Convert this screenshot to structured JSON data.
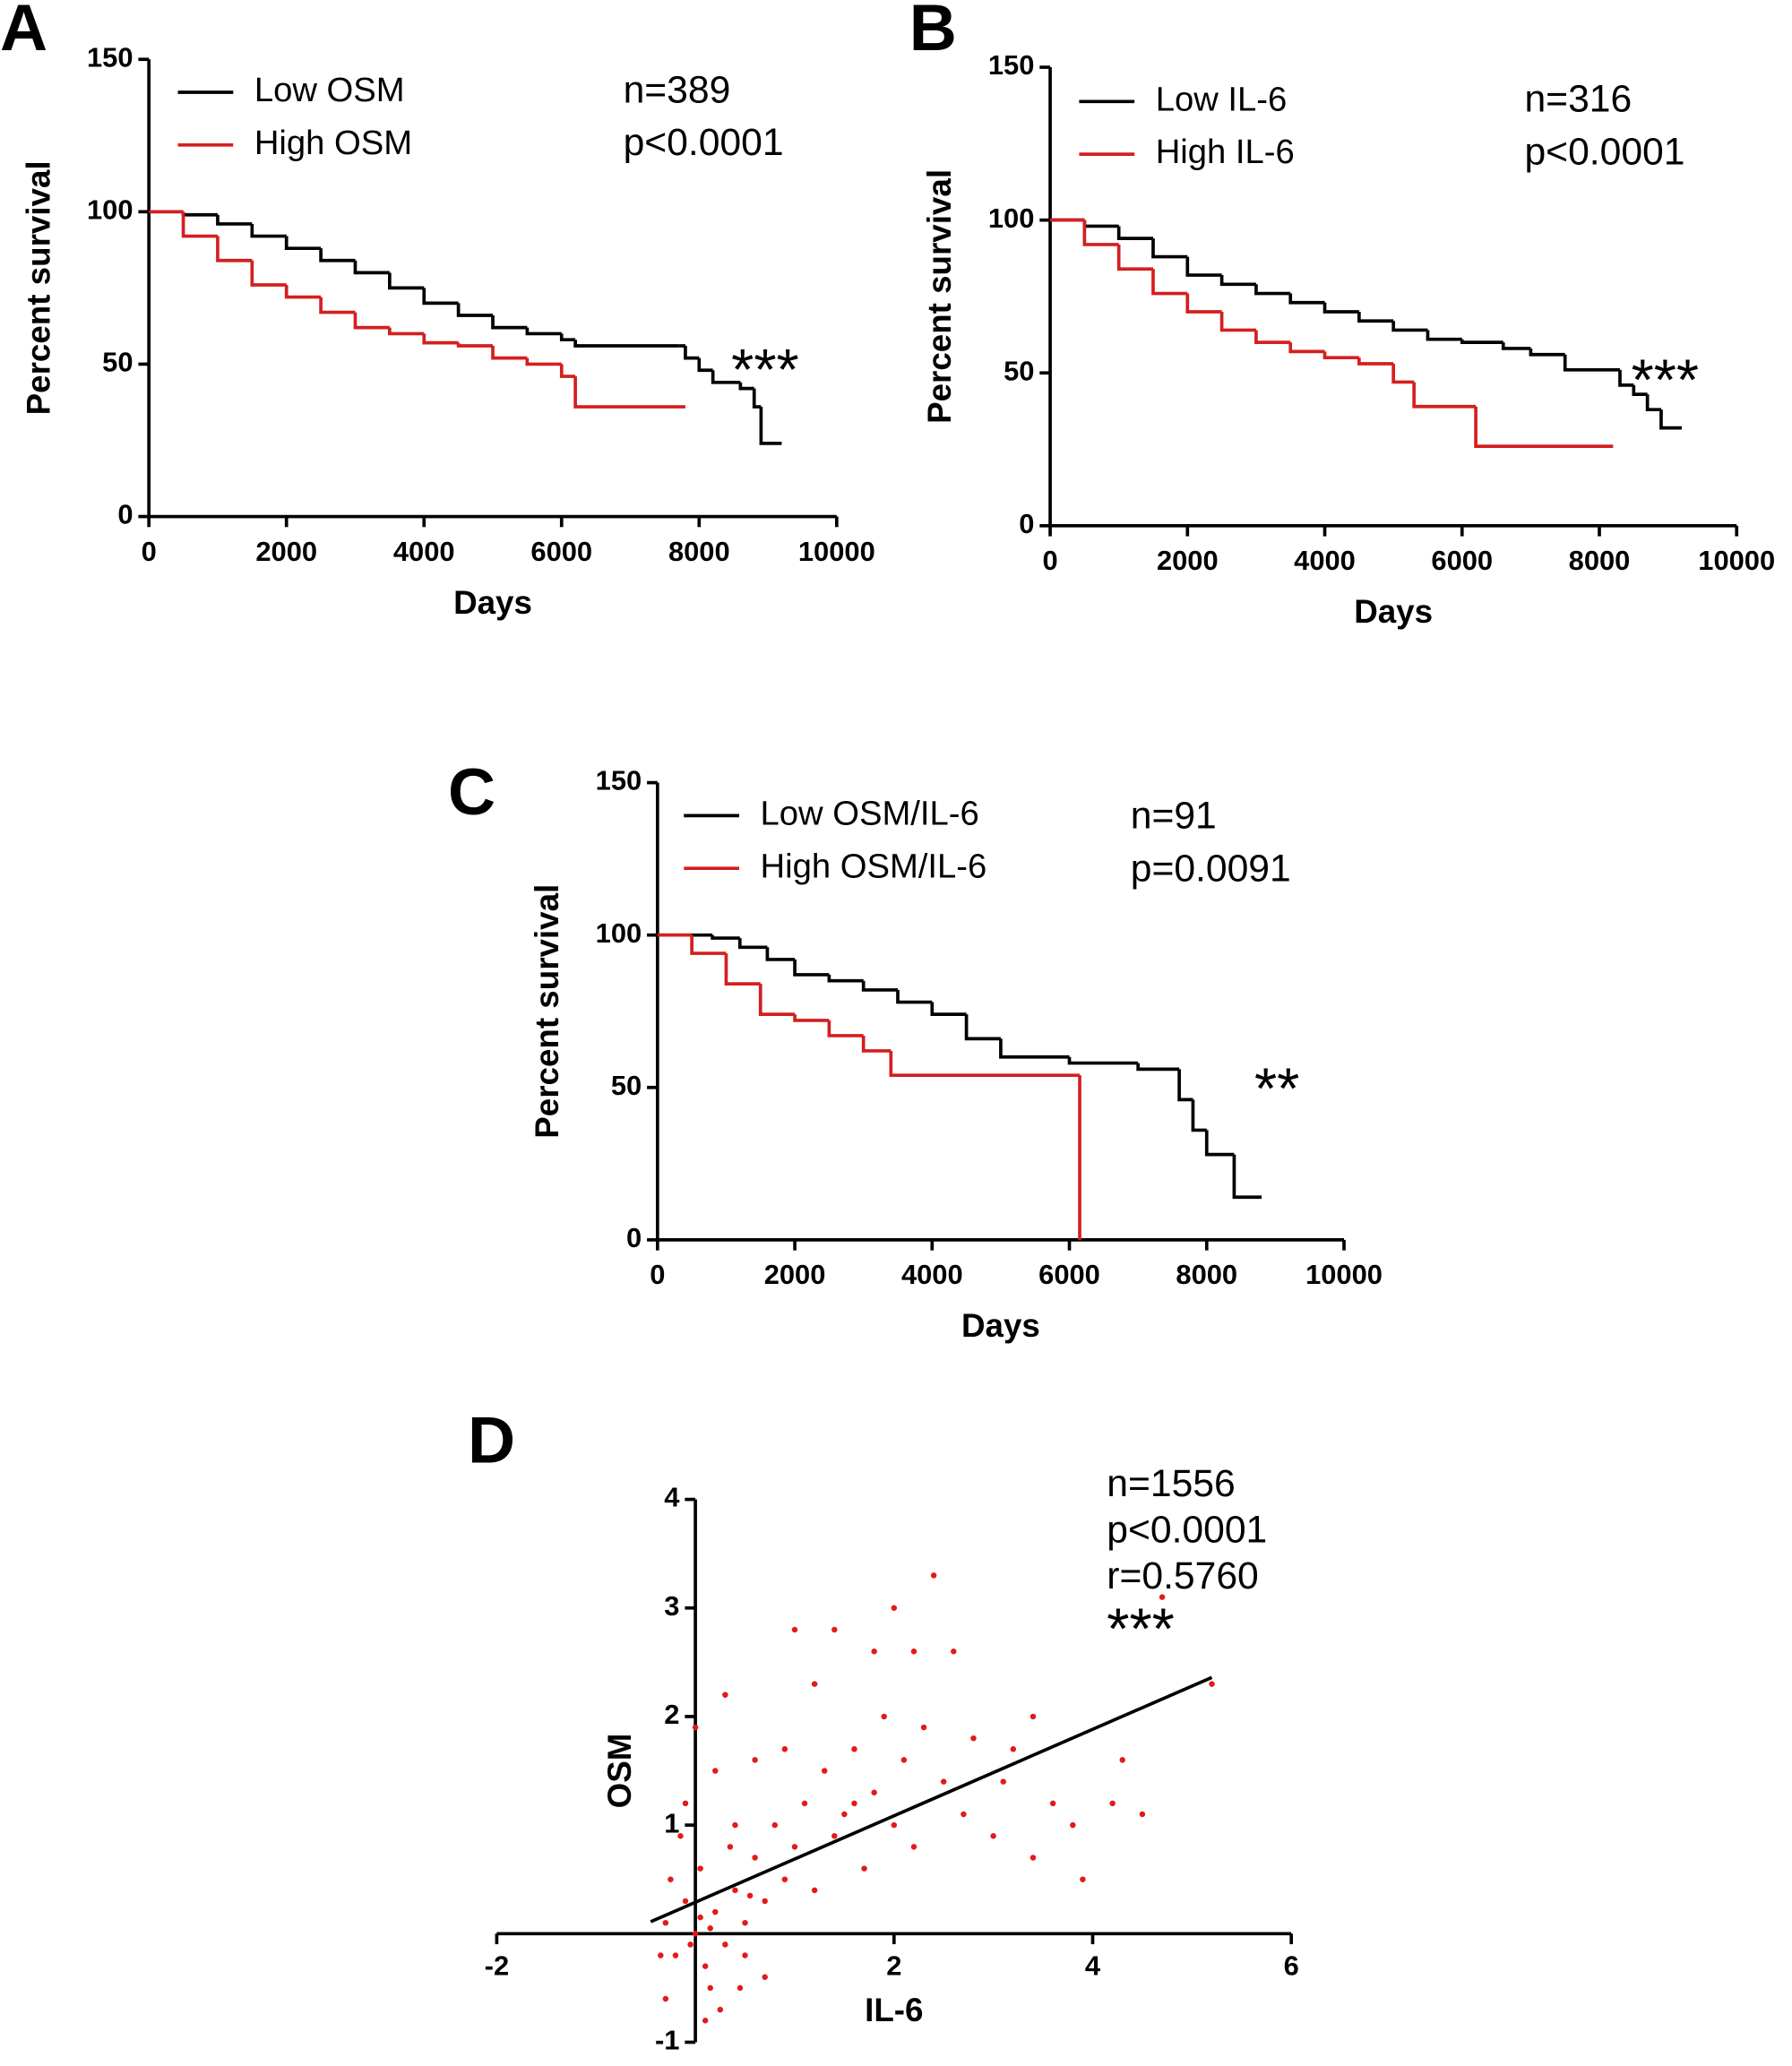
{
  "chart_data": [
    {
      "type": "km",
      "panel": "A",
      "xlabel": "Days",
      "ylabel": "Percent survival",
      "xlim": [
        0,
        10000
      ],
      "xticks": [
        0,
        2000,
        4000,
        6000,
        8000,
        10000
      ],
      "ylim": [
        0,
        150
      ],
      "yticks": [
        0,
        50,
        100,
        150
      ],
      "annotations": [
        "n=389",
        "p<0.0001"
      ],
      "significance": "***",
      "series": [
        {
          "name": "Low OSM",
          "color": "#000000",
          "x": [
            0,
            500,
            1000,
            1500,
            2000,
            2500,
            3000,
            3500,
            4000,
            4500,
            5000,
            5500,
            6000,
            6200,
            7700,
            7800,
            8000,
            8200,
            8600,
            8800,
            8900,
            9200
          ],
          "values": [
            100,
            99,
            96,
            92,
            88,
            84,
            80,
            75,
            70,
            66,
            62,
            60,
            58,
            56,
            56,
            52,
            48,
            44,
            42,
            36,
            24,
            24
          ]
        },
        {
          "name": "High OSM",
          "color": "#d41f1f",
          "x": [
            0,
            500,
            1000,
            1500,
            2000,
            2500,
            3000,
            3500,
            4000,
            4500,
            5000,
            5500,
            6000,
            6200,
            7800
          ],
          "values": [
            100,
            92,
            84,
            76,
            72,
            67,
            62,
            60,
            57,
            56,
            52,
            50,
            46,
            36,
            36
          ]
        }
      ]
    },
    {
      "type": "km",
      "panel": "B",
      "xlabel": "Days",
      "ylabel": "Percent survival",
      "xlim": [
        0,
        10000
      ],
      "xticks": [
        0,
        2000,
        4000,
        6000,
        8000,
        10000
      ],
      "ylim": [
        0,
        150
      ],
      "yticks": [
        0,
        50,
        100,
        150
      ],
      "annotations": [
        "n=316",
        "p<0.0001"
      ],
      "significance": "***",
      "series": [
        {
          "name": "Low IL-6",
          "color": "#000000",
          "x": [
            0,
            500,
            1000,
            1500,
            2000,
            2500,
            3000,
            3500,
            4000,
            4500,
            5000,
            5500,
            6000,
            6600,
            7000,
            7500,
            8300,
            8500,
            8700,
            8900,
            9200
          ],
          "values": [
            100,
            98,
            94,
            88,
            82,
            79,
            76,
            73,
            70,
            67,
            64,
            61,
            60,
            58,
            56,
            51,
            46,
            43,
            38,
            32,
            32
          ]
        },
        {
          "name": "High IL-6",
          "color": "#d41f1f",
          "x": [
            0,
            500,
            1000,
            1500,
            2000,
            2500,
            3000,
            3500,
            4000,
            4500,
            5000,
            5300,
            6200,
            8200
          ],
          "values": [
            100,
            92,
            84,
            76,
            70,
            64,
            60,
            57,
            55,
            53,
            47,
            39,
            26,
            26
          ]
        }
      ]
    },
    {
      "type": "km",
      "panel": "C",
      "xlabel": "Days",
      "ylabel": "Percent survival",
      "xlim": [
        0,
        10000
      ],
      "xticks": [
        0,
        2000,
        4000,
        6000,
        8000,
        10000
      ],
      "ylim": [
        0,
        150
      ],
      "yticks": [
        0,
        50,
        100,
        150
      ],
      "annotations": [
        "n=91",
        "p=0.0091"
      ],
      "significance": "**",
      "series": [
        {
          "name": "Low OSM/IL-6",
          "color": "#000000",
          "x": [
            0,
            800,
            1200,
            1600,
            2000,
            2500,
            3000,
            3500,
            4000,
            4500,
            5000,
            6000,
            7000,
            7600,
            7800,
            8000,
            8400,
            8800
          ],
          "values": [
            100,
            99,
            96,
            92,
            87,
            85,
            82,
            78,
            74,
            66,
            60,
            58,
            56,
            46,
            36,
            28,
            14,
            14
          ]
        },
        {
          "name": "High OSM/IL-6",
          "color": "#d41f1f",
          "x": [
            0,
            500,
            1000,
            1500,
            2000,
            2500,
            3000,
            3400,
            6150
          ],
          "values": [
            100,
            94,
            84,
            74,
            72,
            67,
            62,
            54,
            0
          ]
        }
      ]
    },
    {
      "type": "scatter",
      "panel": "D",
      "xlabel": "IL-6",
      "ylabel": "OSM",
      "xlim": [
        -2,
        6
      ],
      "xticks": [
        -2,
        2,
        4,
        6
      ],
      "ylim": [
        -1,
        4
      ],
      "yticks": [
        -1,
        1,
        2,
        3,
        4
      ],
      "annotations": [
        "n=1556",
        "p<0.0001",
        "r=0.5760"
      ],
      "significance": "***",
      "points": {
        "color": "#e31a1a",
        "x": [
          -0.3,
          -0.2,
          -0.1,
          0,
          0.1,
          0.2,
          0.3,
          -0.25,
          0.05,
          0.15,
          0.4,
          0.5,
          0.6,
          0.7,
          0.8,
          0.9,
          1.0,
          1.1,
          1.2,
          1.3,
          1.4,
          1.5,
          1.6,
          1.7,
          1.8,
          1.9,
          2.0,
          2.1,
          2.2,
          2.3,
          2.4,
          2.5,
          2.6,
          2.7,
          2.8,
          3.0,
          3.1,
          3.2,
          3.4,
          3.6,
          3.8,
          3.9,
          4.3,
          4.5,
          4.2,
          1.0,
          1.4,
          0.3,
          0.2,
          0.0,
          -0.1,
          0.4,
          0.6,
          0.7,
          0.1,
          -0.3,
          0.5,
          1.2,
          1.8,
          2.0,
          0.9,
          0.35,
          -0.15,
          0.25,
          0.55,
          0.05,
          -0.05,
          0.15,
          -0.35,
          0.45,
          5.2,
          4.7,
          3.4,
          2.2,
          1.6
        ],
        "values": [
          0.1,
          -0.2,
          0.3,
          0,
          -0.3,
          0.2,
          -0.1,
          0.5,
          0.6,
          -0.5,
          0.4,
          0.1,
          0.7,
          0.3,
          1.0,
          0.5,
          0.8,
          1.2,
          0.4,
          1.5,
          0.9,
          1.1,
          1.7,
          0.6,
          1.3,
          2.0,
          1.0,
          1.6,
          0.8,
          1.9,
          3.3,
          1.4,
          2.6,
          1.1,
          1.8,
          0.9,
          1.4,
          1.7,
          2.0,
          1.2,
          1.0,
          0.5,
          1.6,
          1.1,
          1.2,
          2.8,
          2.8,
          2.2,
          1.5,
          1.9,
          1.2,
          1.0,
          1.6,
          -0.4,
          -0.8,
          -0.6,
          -0.2,
          2.3,
          2.6,
          3.0,
          1.7,
          0.8,
          0.9,
          -0.7,
          0.35,
          0.15,
          -0.1,
          0.05,
          -0.2,
          -0.5,
          2.3,
          3.1,
          0.7,
          2.6,
          1.2
        ]
      },
      "fit": {
        "color": "#000000",
        "x": [
          -0.45,
          5.2
        ],
        "values": [
          0.11,
          2.36
        ]
      }
    }
  ]
}
